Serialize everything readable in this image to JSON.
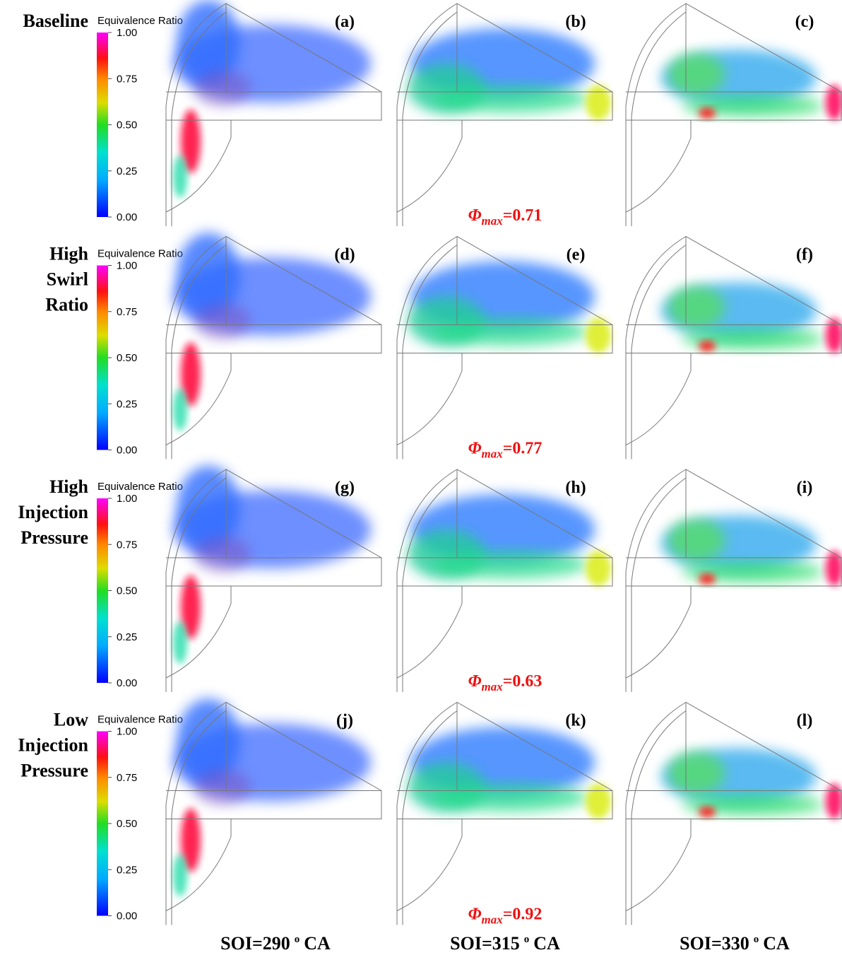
{
  "rows": [
    {
      "label": [
        "Baseline"
      ],
      "colorbar_title": "Equivalence Ratio",
      "colorbar_ticks": [
        {
          "value": 1,
          "label": "1.00"
        },
        {
          "value": 0.75,
          "label": "0.75"
        },
        {
          "value": 0.5,
          "label": "0.50"
        },
        {
          "value": 0.25,
          "label": "0.25"
        },
        {
          "value": 0,
          "label": "0.00"
        }
      ],
      "panels": [
        "(a)",
        "(b)",
        "(c)"
      ],
      "phi_max": {
        "symbol": "Φ",
        "sub": "max",
        "value": "=0.71"
      }
    },
    {
      "label": [
        "High",
        "Swirl",
        "Ratio"
      ],
      "colorbar_title": "Equivalence Ratio",
      "colorbar_ticks": [
        {
          "value": 1,
          "label": "1.00"
        },
        {
          "value": 0.75,
          "label": "0.75"
        },
        {
          "value": 0.5,
          "label": "0.50"
        },
        {
          "value": 0.25,
          "label": "0.25"
        },
        {
          "value": 0,
          "label": "0.00"
        }
      ],
      "panels": [
        "(d)",
        "(e)",
        "(f)"
      ],
      "phi_max": {
        "symbol": "Φ",
        "sub": "max",
        "value": "=0.77"
      }
    },
    {
      "label": [
        "High",
        "Injection",
        "Pressure"
      ],
      "colorbar_title": "Equivalence Ratio",
      "colorbar_ticks": [
        {
          "value": 1,
          "label": "1.00"
        },
        {
          "value": 0.75,
          "label": "0.75"
        },
        {
          "value": 0.5,
          "label": "0.50"
        },
        {
          "value": 0.25,
          "label": "0.25"
        },
        {
          "value": 0,
          "label": "0.00"
        }
      ],
      "panels": [
        "(g)",
        "(h)",
        "(i)"
      ],
      "phi_max": {
        "symbol": "Φ",
        "sub": "max",
        "value": "=0.63"
      }
    },
    {
      "label": [
        "Low",
        "Injection",
        "Pressure"
      ],
      "colorbar_title": "Equivalence Ratio",
      "colorbar_ticks": [
        {
          "value": 1,
          "label": "1.00"
        },
        {
          "value": 0.75,
          "label": "0.75"
        },
        {
          "value": 0.5,
          "label": "0.50"
        },
        {
          "value": 0.25,
          "label": "0.25"
        },
        {
          "value": 0,
          "label": "0.00"
        }
      ],
      "panels": [
        "(j)",
        "(k)",
        "(l)"
      ],
      "phi_max": {
        "symbol": "Φ",
        "sub": "max",
        "value": "=0.92"
      }
    }
  ],
  "columns": [
    {
      "prefix": "SOI=290",
      "sup": "o",
      "suffix": "CA"
    },
    {
      "prefix": "SOI=315",
      "sup": "o",
      "suffix": "CA"
    },
    {
      "prefix": "SOI=330",
      "sup": "o",
      "suffix": "CA"
    }
  ]
}
